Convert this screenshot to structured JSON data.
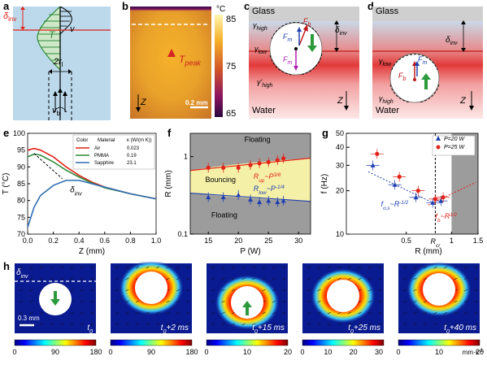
{
  "panels": {
    "a": {
      "label": "a",
      "T": "T",
      "v": "v",
      "delta": "δ",
      "delta_sub": "inv",
      "r": "2r",
      "r_sub": "l",
      "vb": "v",
      "vb_sub": "b"
    },
    "b": {
      "label": "b",
      "unit": "°C",
      "ticks": [
        "85",
        "75",
        "65"
      ],
      "tpeak": "T",
      "tpeak_sub": "peak",
      "scale": "0.2 mm",
      "z": "Z"
    },
    "c": {
      "label": "c",
      "glass": "Glass",
      "water": "Water",
      "ghigh": "γ",
      "ghigh_sub": "high",
      "glow": "γ",
      "glow_sub": "low",
      "ghigh2": "γ'",
      "ghigh2_sub": "high",
      "fb": "F",
      "fb_sub": "b",
      "fm": "F",
      "fm_sub": "m",
      "fm2": "F",
      "fm2_sub": "m",
      "dinv": "δ",
      "dinv_sub": "inv",
      "z": "Z"
    },
    "d": {
      "label": "d",
      "glass": "Glass",
      "water": "Water",
      "dinv": "δ",
      "dinv_sub": "inv",
      "glow": "γ",
      "glow_sub": "low",
      "ghigh": "γ",
      "ghigh_sub": "high",
      "fb": "F",
      "fb_sub": "b",
      "fm": "F",
      "fm_sub": "m",
      "z": "Z"
    },
    "e": {
      "label": "e",
      "ylabel": "T (°C)",
      "xlabel": "Z (mm)",
      "dinv": "δ",
      "dinv_sub": "inv",
      "legend_header": [
        "Color",
        "Material",
        "κ (W/(m K))"
      ],
      "legend_rows": [
        [
          "Air",
          "0.023",
          "#e2231a"
        ],
        [
          "PMMA",
          "0.19",
          "#2e8b3a"
        ],
        [
          "Sapphire",
          "23.1",
          "#2f6db5"
        ]
      ]
    },
    "f": {
      "label": "f",
      "ylabel": "R (mm)",
      "xlabel": "P (W)",
      "floating_top": "Floating",
      "bouncing": "Bouncing",
      "floating_bottom": "Floating",
      "rup": "R",
      "rup_sub": "up",
      "rup_exp": "~P",
      "rup_pow": "3/8",
      "rlow": "R",
      "rlow_sub": "low",
      "rlow_exp": "~P",
      "rlow_pow": "-1/4"
    },
    "g": {
      "label": "g",
      "ylabel": "f (Hz)",
      "xlabel": "R (mm)",
      "rcr": "R",
      "rcr_sub": "cr",
      "legend": [
        "P=20 W",
        "P=25 W"
      ],
      "fos": "f",
      "fos_sub": "o,s",
      "fos_exp": "~R",
      "fos_pow": "-1/2",
      "fb": "f",
      "fb_sub": "b",
      "fb_exp": "~R",
      "fb_pow": "1/2"
    },
    "h": {
      "label": "h",
      "dinv": "δ",
      "dinv_sub": "inv",
      "scale": "0.3 mm",
      "unit": "mm·s",
      "times": [
        "t",
        "t",
        "t",
        "t",
        "t"
      ],
      "time_suffix": [
        "",
        "+2 ms",
        "+15 ms",
        "+25 ms",
        "+40 ms"
      ],
      "cbars": [
        [
          "0",
          "90",
          "180"
        ],
        [
          "0",
          "90",
          "180"
        ],
        [
          "0",
          "10",
          "20"
        ],
        [
          "0",
          "10",
          "20",
          "30"
        ],
        [
          "0",
          "10",
          "20"
        ]
      ]
    }
  },
  "chart_data": [
    {
      "type": "line",
      "panel": "e",
      "xlabel": "Z (mm)",
      "ylabel": "T (°C)",
      "xlim": [
        0,
        1.0
      ],
      "ylim": [
        70,
        100
      ],
      "xticks": [
        "0.0",
        "0.2",
        "0.4",
        "0.6",
        "0.8",
        "1.0"
      ],
      "yticks": [
        "70",
        "75",
        "80",
        "85",
        "90",
        "95",
        "100"
      ],
      "series": [
        {
          "name": "Air",
          "color": "#e2231a",
          "x": [
            0,
            0.05,
            0.1,
            0.2,
            0.3,
            0.4,
            0.5,
            0.6,
            0.8,
            1.0
          ],
          "y": [
            95,
            95.5,
            95,
            93,
            90,
            87.5,
            85.5,
            84,
            82,
            80.5
          ]
        },
        {
          "name": "PMMA",
          "color": "#2e8b3a",
          "x": [
            0,
            0.05,
            0.1,
            0.2,
            0.3,
            0.4,
            0.5,
            0.6,
            0.8,
            1.0
          ],
          "y": [
            93,
            93.8,
            93.5,
            91.5,
            89,
            87,
            85.2,
            83.8,
            82,
            80.5
          ]
        },
        {
          "name": "Sapphire",
          "color": "#2f6db5",
          "x": [
            0,
            0.05,
            0.1,
            0.2,
            0.3,
            0.4,
            0.5,
            0.6,
            0.8,
            1.0
          ],
          "y": [
            72,
            78,
            81.5,
            84.5,
            86,
            86,
            85,
            84,
            82,
            80.5
          ]
        }
      ]
    },
    {
      "type": "scatter",
      "panel": "f",
      "xlabel": "P (W)",
      "ylabel": "R (mm)",
      "xlim": [
        12,
        32
      ],
      "ylim": [
        0.1,
        2
      ],
      "yscale": "log",
      "xticks": [
        "15",
        "20",
        "25",
        "30"
      ],
      "yticks": [
        "0.1",
        "1"
      ],
      "series": [
        {
          "name": "R_up",
          "color": "#e2231a",
          "x": [
            15,
            17.5,
            20,
            22,
            23.5,
            25,
            26.5,
            27.5
          ],
          "y": [
            0.72,
            0.72,
            0.72,
            0.78,
            0.82,
            0.85,
            0.9,
            0.95
          ]
        },
        {
          "name": "R_low",
          "color": "#1f3fb0",
          "x": [
            15,
            17.5,
            20,
            22,
            23.5,
            25,
            26.5,
            27.5
          ],
          "y": [
            0.3,
            0.3,
            0.32,
            0.28,
            0.26,
            0.27,
            0.26,
            0.27
          ]
        }
      ]
    },
    {
      "type": "scatter",
      "panel": "g",
      "xlabel": "R (mm)",
      "ylabel": "f (Hz)",
      "xlim": [
        0.2,
        1.5
      ],
      "ylim": [
        10,
        50
      ],
      "yscale": "log",
      "xscale": "log",
      "xticks": [
        "0.5",
        "1",
        "1.5"
      ],
      "yticks": [
        "10",
        "20",
        "30",
        "40",
        "50"
      ],
      "series": [
        {
          "name": "P=20 W",
          "color": "#1f3fb0",
          "x": [
            0.3,
            0.42,
            0.58,
            0.75,
            0.85
          ],
          "y": [
            30,
            22,
            18,
            16.5,
            17
          ]
        },
        {
          "name": "P=25 W",
          "color": "#e2231a",
          "x": [
            0.32,
            0.45,
            0.6,
            0.78,
            0.88
          ],
          "y": [
            36,
            25,
            20,
            17.5,
            18
          ]
        }
      ]
    }
  ]
}
